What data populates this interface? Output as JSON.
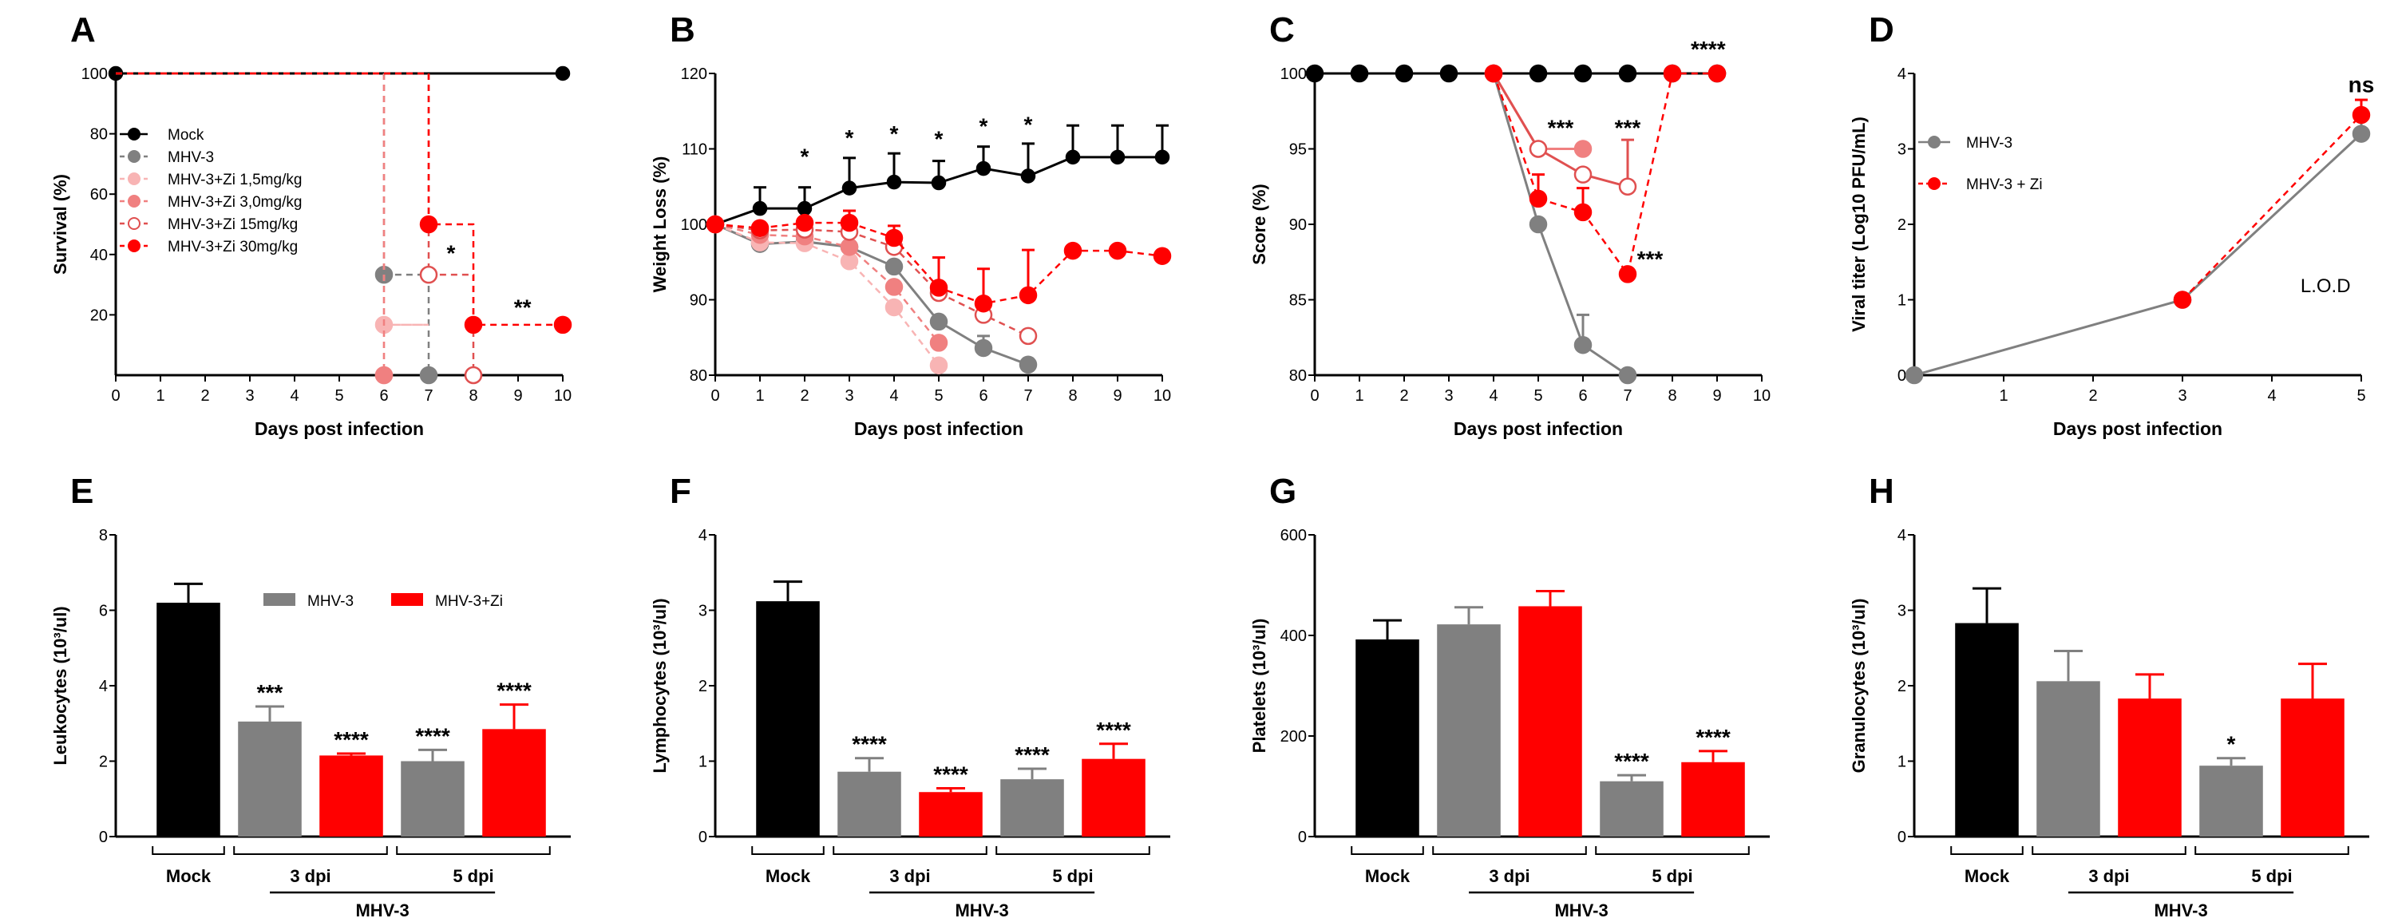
{
  "colors": {
    "mock": "#000000",
    "mhv3": "#808080",
    "zi": "#ff0000",
    "zi_light1": "#f8b4b4",
    "zi_light2": "#f08080",
    "zi_mid": "#e05050",
    "text": "#000000"
  },
  "chart_data": [
    {
      "panel": "A",
      "type": "line",
      "step": true,
      "title": "",
      "xlabel": "Days post infection",
      "ylabel": "Survival (%)",
      "xlim": [
        0,
        10
      ],
      "ylim": [
        0,
        100
      ],
      "xticks": [
        0,
        1,
        2,
        3,
        4,
        5,
        6,
        7,
        8,
        9,
        10
      ],
      "yticks": [
        20,
        40,
        60,
        80,
        100
      ],
      "legend_position": "left",
      "series": [
        {
          "name": "Mock",
          "color": "#000000",
          "dash": false,
          "marker": "filled",
          "x": [
            0,
            10
          ],
          "y": [
            100,
            100
          ]
        },
        {
          "name": "MHV-3",
          "color": "#808080",
          "dash": true,
          "marker": "filled",
          "x": [
            0,
            6,
            6,
            7,
            7
          ],
          "y": [
            100,
            100,
            33.3,
            33.3,
            0
          ],
          "points": [
            [
              6,
              33.3
            ],
            [
              7,
              0
            ]
          ]
        },
        {
          "name": "MHV-3+Zi 1,5mg/kg",
          "color": "#f8b4b4",
          "dash": true,
          "marker": "filled",
          "x": [
            0,
            6,
            6,
            7,
            7,
            6,
            6
          ],
          "y": [
            100,
            100,
            16.7,
            16.7,
            16.7,
            16.7,
            0
          ],
          "points": [
            [
              6,
              16.7
            ],
            [
              6,
              0
            ]
          ]
        },
        {
          "name": "MHV-3+Zi 3,0mg/kg",
          "color": "#f08080",
          "dash": true,
          "marker": "filled",
          "x": [
            0,
            6,
            6
          ],
          "y": [
            100,
            100,
            0
          ],
          "points": [
            [
              6,
              0
            ]
          ]
        },
        {
          "name": "MHV-3+Zi 15mg/kg",
          "color": "#e05050",
          "dash": true,
          "marker": "open",
          "x": [
            0,
            7,
            7,
            8,
            8
          ],
          "y": [
            100,
            100,
            33.3,
            33.3,
            0
          ],
          "points": [
            [
              7,
              33.3
            ],
            [
              8,
              0
            ]
          ]
        },
        {
          "name": "MHV-3+Zi 30mg/kg",
          "color": "#ff0000",
          "dash": true,
          "marker": "filled",
          "x": [
            0,
            7,
            7,
            8,
            8,
            10
          ],
          "y": [
            100,
            100,
            50,
            50,
            16.7,
            16.7
          ],
          "points": [
            [
              7,
              50
            ],
            [
              8,
              16.7
            ],
            [
              10,
              16.7
            ]
          ]
        }
      ],
      "annotations": [
        {
          "text": "*",
          "x": 7.5,
          "y": 38
        },
        {
          "text": "**",
          "x": 9.1,
          "y": 20
        }
      ]
    },
    {
      "panel": "B",
      "type": "line",
      "title": "",
      "xlabel": "Days post infection",
      "ylabel": "Weight Loss (%)",
      "xlim": [
        0,
        10
      ],
      "ylim": [
        80,
        120
      ],
      "xticks": [
        0,
        1,
        2,
        3,
        4,
        5,
        6,
        7,
        8,
        9,
        10
      ],
      "yticks": [
        80,
        90,
        100,
        110,
        120
      ],
      "series": [
        {
          "name": "Mock",
          "color": "#000000",
          "dash": false,
          "marker": "filled",
          "x": [
            0,
            1,
            2,
            3,
            4,
            5,
            6,
            7,
            8,
            9,
            10
          ],
          "y": [
            100,
            102.1,
            102.1,
            104.8,
            105.6,
            105.5,
            107.4,
            106.4,
            108.9,
            108.9,
            108.9
          ],
          "err": [
            0,
            2.8,
            2.8,
            4.0,
            3.8,
            2.9,
            2.9,
            4.3,
            4.2,
            4.2,
            4.2
          ]
        },
        {
          "name": "MHV-3",
          "color": "#808080",
          "dash": false,
          "marker": "filled",
          "x": [
            0,
            1,
            2,
            3,
            4,
            5,
            6,
            7
          ],
          "y": [
            100,
            97.4,
            97.7,
            97.0,
            94.4,
            87.1,
            83.6,
            81.4
          ],
          "err": [
            0,
            0,
            0,
            0,
            0,
            0,
            1.6,
            0
          ]
        },
        {
          "name": "MHV-3+Zi 1,5mg/kg",
          "color": "#f8b4b4",
          "dash": true,
          "marker": "filled",
          "x": [
            0,
            1,
            2,
            3,
            4,
            5
          ],
          "y": [
            100,
            97.6,
            97.5,
            95.1,
            89.0,
            81.3
          ],
          "err": [
            0,
            0,
            0,
            0,
            0,
            0
          ]
        },
        {
          "name": "MHV-3+Zi 3,0mg/kg",
          "color": "#f08080",
          "dash": true,
          "marker": "filled",
          "x": [
            0,
            1,
            2,
            3,
            4,
            5
          ],
          "y": [
            100,
            98.6,
            98.4,
            97.0,
            91.7,
            84.3
          ],
          "err": [
            0,
            0,
            0,
            0,
            0,
            0
          ]
        },
        {
          "name": "MHV-3+Zi 15mg/kg",
          "color": "#e05050",
          "dash": true,
          "marker": "open",
          "x": [
            0,
            1,
            2,
            3,
            4,
            5,
            6,
            7
          ],
          "y": [
            100,
            99.2,
            99.3,
            99.0,
            97.0,
            90.9,
            88.0,
            85.2
          ],
          "err": [
            0,
            0,
            0,
            0,
            0,
            0,
            0,
            0
          ]
        },
        {
          "name": "MHV-3+Zi 30mg/kg",
          "color": "#ff0000",
          "dash": true,
          "marker": "filled",
          "x": [
            0,
            1,
            2,
            3,
            4,
            5,
            6,
            7,
            8,
            9,
            10
          ],
          "y": [
            100,
            99.5,
            100.2,
            100.2,
            98.2,
            91.6,
            89.5,
            90.6,
            96.5,
            96.5,
            95.8
          ],
          "err": [
            0,
            0,
            0,
            1.6,
            1.6,
            4.0,
            4.6,
            6.0,
            0,
            0,
            0
          ]
        }
      ],
      "annotations": [
        {
          "text": "*",
          "x": 2,
          "y": 108
        },
        {
          "text": "*",
          "x": 3,
          "y": 110.5
        },
        {
          "text": "*",
          "x": 4,
          "y": 111
        },
        {
          "text": "*",
          "x": 5,
          "y": 110.3
        },
        {
          "text": "*",
          "x": 6,
          "y": 112
        },
        {
          "text": "*",
          "x": 7,
          "y": 112.2
        }
      ]
    },
    {
      "panel": "C",
      "type": "line",
      "title": "",
      "xlabel": "Days post infection",
      "ylabel": "Score (%)",
      "xlim": [
        0,
        10
      ],
      "ylim": [
        80,
        100
      ],
      "xticks": [
        0,
        1,
        2,
        3,
        4,
        5,
        6,
        7,
        8,
        9,
        10
      ],
      "yticks": [
        80,
        85,
        90,
        95,
        100
      ],
      "series": [
        {
          "name": "Mock",
          "color": "#000000",
          "dash": false,
          "marker": "filled",
          "x": [
            0,
            1,
            2,
            3,
            4,
            5,
            6,
            7,
            8,
            9
          ],
          "y": [
            100,
            100,
            100,
            100,
            100,
            100,
            100,
            100,
            100,
            100
          ],
          "err": [
            0,
            0,
            0,
            0,
            0,
            0,
            0,
            0,
            0,
            0
          ]
        },
        {
          "name": "MHV-3",
          "color": "#808080",
          "dash": false,
          "marker": "filled",
          "x": [
            4,
            5,
            6,
            7
          ],
          "y": [
            100,
            90,
            82,
            80
          ],
          "err": [
            0,
            0,
            2,
            0
          ]
        },
        {
          "name": "MHV-3+Zi 3,0mg/kg",
          "color": "#f08080",
          "dash": false,
          "marker": "filled",
          "x": [
            4,
            5,
            6
          ],
          "y": [
            100,
            95,
            95
          ],
          "err": [
            0,
            0,
            0
          ]
        },
        {
          "name": "MHV-3+Zi 15mg/kg",
          "color": "#e05050",
          "dash": false,
          "marker": "open",
          "x": [
            4,
            5,
            6,
            7
          ],
          "y": [
            100,
            95,
            93.3,
            92.5
          ],
          "err": [
            0,
            0,
            0,
            3.1
          ]
        },
        {
          "name": "MHV-3+Zi 30mg/kg",
          "color": "#ff0000",
          "dash": true,
          "marker": "filled",
          "x": [
            4,
            5,
            6,
            7,
            8,
            9
          ],
          "y": [
            100,
            91.7,
            90.8,
            86.7,
            100,
            100
          ],
          "err": [
            0,
            1.6,
            1.6,
            0,
            0,
            0
          ]
        }
      ],
      "annotations": [
        {
          "text": "***",
          "x": 5.5,
          "y": 95.9
        },
        {
          "text": "***",
          "x": 7,
          "y": 95.9
        },
        {
          "text": "***",
          "x": 7.5,
          "y": 87.2
        },
        {
          "text": "****",
          "x": 8.8,
          "y": 101.1
        }
      ]
    },
    {
      "panel": "D",
      "type": "line",
      "title": "",
      "xlabel": "Days post infection",
      "ylabel": "Viral titer (Log10 PFU/mL)",
      "xlim": [
        0,
        5
      ],
      "ylim": [
        0,
        4
      ],
      "xticks": [
        1,
        2,
        3,
        4,
        5
      ],
      "yticks": [
        0,
        1,
        2,
        3,
        4
      ],
      "legend_position": "top-left",
      "series": [
        {
          "name": "MHV-3",
          "color": "#808080",
          "dash": false,
          "marker": "filled",
          "x": [
            0,
            3,
            5
          ],
          "y": [
            0,
            1,
            3.2
          ],
          "err": [
            0,
            0,
            0.2
          ]
        },
        {
          "name": "MHV-3 + Zi",
          "color": "#ff0000",
          "dash": true,
          "marker": "filled",
          "x": [
            3,
            5
          ],
          "y": [
            1,
            3.45
          ],
          "err": [
            0,
            0.2
          ]
        }
      ],
      "annotations": [
        {
          "text": "ns",
          "x": 5,
          "y": 3.75
        },
        {
          "text": "L.O.D",
          "x": 4.6,
          "y": 1.1
        }
      ]
    },
    {
      "panel": "E",
      "type": "bar",
      "ylabel": "Leukocytes (10³/ul)",
      "ylim": [
        0,
        8
      ],
      "yticks": [
        0,
        2,
        4,
        6,
        8
      ],
      "categories": [
        "Mock",
        "MHV-3 3 dpi",
        "MHV-3+Zi 3 dpi",
        "MHV-3 5 dpi",
        "MHV-3+Zi 5 dpi"
      ],
      "values": [
        6.2,
        3.05,
        2.15,
        2.0,
        2.85
      ],
      "errors": [
        0.5,
        0.4,
        0.05,
        0.3,
        0.65
      ],
      "bar_colors": [
        "#000000",
        "#808080",
        "#ff0000",
        "#808080",
        "#ff0000"
      ],
      "significance": [
        "",
        "***",
        "****",
        "****",
        "****"
      ],
      "legend_position": "top-right",
      "legend": [
        {
          "name": "MHV-3",
          "color": "#808080"
        },
        {
          "name": "MHV-3+Zi",
          "color": "#ff0000"
        }
      ],
      "group_labels": [
        "Mock",
        "3 dpi",
        "5 dpi"
      ],
      "outer_label": "MHV-3"
    },
    {
      "panel": "F",
      "type": "bar",
      "ylabel": "Lymphocytes (10³/ul)",
      "ylim": [
        0,
        4
      ],
      "yticks": [
        0,
        1,
        2,
        3,
        4
      ],
      "categories": [
        "Mock",
        "MHV-3 3 dpi",
        "MHV-3+Zi 3 dpi",
        "MHV-3 5 dpi",
        "MHV-3+Zi 5 dpi"
      ],
      "values": [
        3.12,
        0.86,
        0.59,
        0.76,
        1.03
      ],
      "errors": [
        0.26,
        0.18,
        0.05,
        0.14,
        0.2
      ],
      "bar_colors": [
        "#000000",
        "#808080",
        "#ff0000",
        "#808080",
        "#ff0000"
      ],
      "significance": [
        "",
        "****",
        "****",
        "****",
        "****"
      ],
      "group_labels": [
        "Mock",
        "3 dpi",
        "5 dpi"
      ],
      "outer_label": "MHV-3"
    },
    {
      "panel": "G",
      "type": "bar",
      "ylabel": "Platelets (10³/ul)",
      "ylim": [
        0,
        600
      ],
      "yticks": [
        0,
        200,
        400,
        600
      ],
      "categories": [
        "Mock",
        "MHV-3 3 dpi",
        "MHV-3+Zi 3 dpi",
        "MHV-3 5 dpi",
        "MHV-3+Zi 5 dpi"
      ],
      "values": [
        392,
        422,
        458,
        110,
        148
      ],
      "errors": [
        38,
        34,
        30,
        12,
        22
      ],
      "bar_colors": [
        "#000000",
        "#808080",
        "#ff0000",
        "#808080",
        "#ff0000"
      ],
      "significance": [
        "",
        "",
        "",
        "****",
        "****"
      ],
      "group_labels": [
        "Mock",
        "3 dpi",
        "5 dpi"
      ],
      "outer_label": "MHV-3"
    },
    {
      "panel": "H",
      "type": "bar",
      "ylabel": "Granulocytes (10³/ul)",
      "ylim": [
        0,
        4
      ],
      "yticks": [
        0,
        1,
        2,
        3,
        4
      ],
      "categories": [
        "Mock",
        "MHV-3 3 dpi",
        "MHV-3+Zi 3 dpi",
        "MHV-3 5 dpi",
        "MHV-3+Zi 5 dpi"
      ],
      "values": [
        2.83,
        2.06,
        1.83,
        0.94,
        1.83
      ],
      "errors": [
        0.46,
        0.4,
        0.32,
        0.1,
        0.46
      ],
      "bar_colors": [
        "#000000",
        "#808080",
        "#ff0000",
        "#808080",
        "#ff0000"
      ],
      "significance": [
        "",
        "",
        "",
        "*",
        ""
      ],
      "group_labels": [
        "Mock",
        "3 dpi",
        "5 dpi"
      ],
      "outer_label": "MHV-3"
    }
  ]
}
